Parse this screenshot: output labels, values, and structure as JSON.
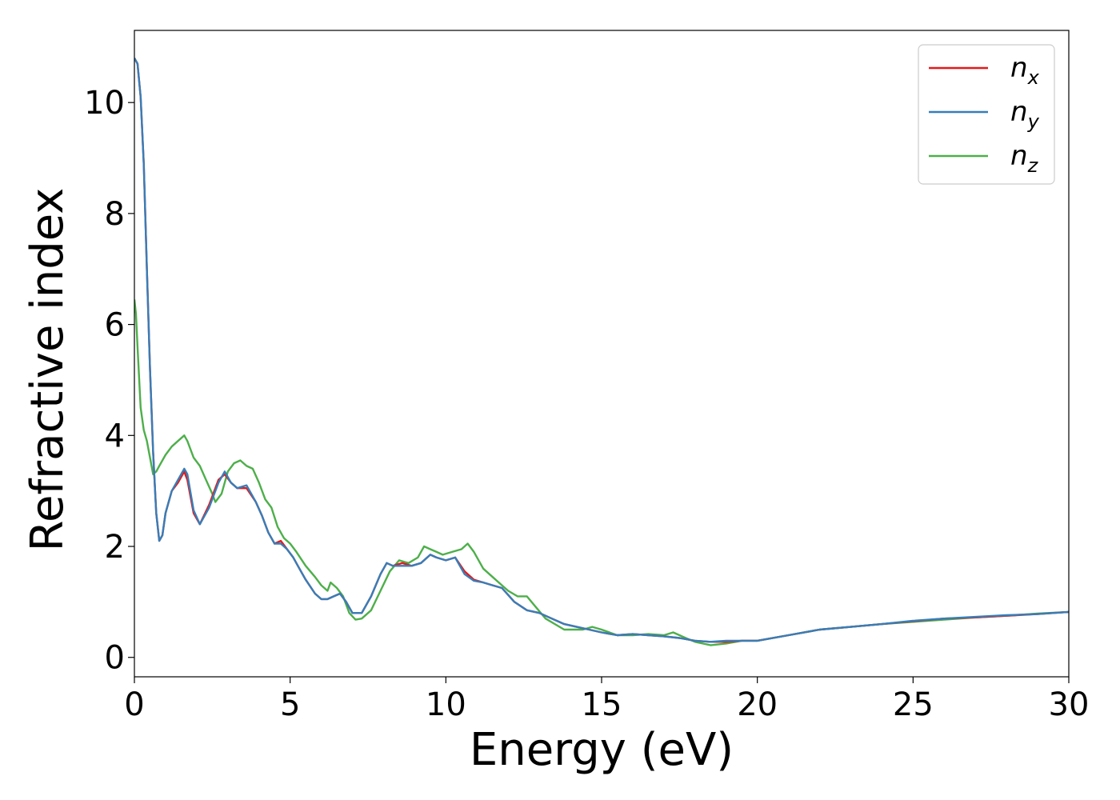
{
  "chart_data": {
    "type": "line",
    "xlabel": "Energy (eV)",
    "ylabel": "Refractive index",
    "xlim": [
      0,
      30
    ],
    "ylim": [
      -0.35,
      11.3
    ],
    "xticks": [
      "0",
      "5",
      "10",
      "15",
      "20",
      "25",
      "30"
    ],
    "yticks": [
      "0",
      "2",
      "4",
      "6",
      "8",
      "10"
    ],
    "grid": false,
    "legend_position": "top-right",
    "series": [
      {
        "name": "n_x",
        "label_main": "n",
        "label_sub": "x",
        "color": "#e41a1c",
        "x": [
          0.0,
          0.1,
          0.2,
          0.3,
          0.4,
          0.5,
          0.6,
          0.7,
          0.8,
          0.9,
          1.0,
          1.2,
          1.4,
          1.6,
          1.7,
          1.9,
          2.1,
          2.4,
          2.7,
          2.9,
          3.1,
          3.3,
          3.6,
          3.9,
          4.1,
          4.3,
          4.5,
          4.7,
          4.9,
          5.1,
          5.3,
          5.5,
          5.8,
          6.0,
          6.2,
          6.4,
          6.6,
          6.8,
          7.0,
          7.3,
          7.6,
          7.9,
          8.1,
          8.3,
          8.6,
          8.9,
          9.2,
          9.5,
          9.7,
          10.0,
          10.3,
          10.6,
          10.9,
          11.2,
          11.5,
          11.8,
          12.2,
          12.6,
          13.0,
          13.4,
          13.8,
          14.2,
          14.6,
          15.0,
          15.5,
          16.0,
          16.5,
          17.0,
          17.5,
          18.0,
          18.5,
          19.0,
          19.5,
          20.0,
          21.0,
          22.0,
          23.0,
          24.0,
          25.0,
          26.0,
          27.0,
          28.0,
          29.0,
          30.0
        ],
        "values": [
          10.8,
          10.7,
          10.1,
          8.9,
          7.0,
          5.2,
          3.7,
          2.6,
          2.1,
          2.2,
          2.6,
          3.0,
          3.15,
          3.35,
          3.2,
          2.6,
          2.4,
          2.75,
          3.2,
          3.3,
          3.15,
          3.05,
          3.05,
          2.8,
          2.55,
          2.25,
          2.05,
          2.1,
          1.95,
          1.8,
          1.6,
          1.4,
          1.15,
          1.05,
          1.05,
          1.1,
          1.15,
          1.0,
          0.8,
          0.8,
          1.1,
          1.5,
          1.7,
          1.65,
          1.7,
          1.65,
          1.7,
          1.85,
          1.8,
          1.75,
          1.8,
          1.55,
          1.4,
          1.35,
          1.3,
          1.25,
          1.0,
          0.85,
          0.8,
          0.7,
          0.6,
          0.55,
          0.5,
          0.45,
          0.4,
          0.42,
          0.4,
          0.38,
          0.35,
          0.3,
          0.28,
          0.28,
          0.3,
          0.3,
          0.4,
          0.5,
          0.55,
          0.6,
          0.65,
          0.7,
          0.72,
          0.75,
          0.78,
          0.82
        ]
      },
      {
        "name": "n_y",
        "label_main": "n",
        "label_sub": "y",
        "color": "#377eb8",
        "x": [
          0.0,
          0.1,
          0.2,
          0.3,
          0.4,
          0.5,
          0.6,
          0.7,
          0.8,
          0.9,
          1.0,
          1.2,
          1.4,
          1.6,
          1.7,
          1.9,
          2.1,
          2.4,
          2.7,
          2.9,
          3.1,
          3.3,
          3.6,
          3.9,
          4.1,
          4.3,
          4.5,
          4.7,
          4.9,
          5.1,
          5.3,
          5.5,
          5.8,
          6.0,
          6.2,
          6.4,
          6.6,
          6.8,
          7.0,
          7.3,
          7.6,
          7.9,
          8.1,
          8.3,
          8.6,
          8.9,
          9.2,
          9.5,
          9.7,
          10.0,
          10.3,
          10.6,
          10.9,
          11.2,
          11.5,
          11.8,
          12.2,
          12.6,
          13.0,
          13.4,
          13.8,
          14.2,
          14.6,
          15.0,
          15.5,
          16.0,
          16.5,
          17.0,
          17.5,
          18.0,
          18.5,
          19.0,
          19.5,
          20.0,
          21.0,
          22.0,
          23.0,
          24.0,
          25.0,
          26.0,
          27.0,
          28.0,
          29.0,
          30.0
        ],
        "values": [
          10.8,
          10.7,
          10.1,
          8.9,
          7.0,
          5.2,
          3.7,
          2.6,
          2.1,
          2.2,
          2.6,
          3.0,
          3.2,
          3.4,
          3.3,
          2.65,
          2.4,
          2.7,
          3.15,
          3.35,
          3.15,
          3.05,
          3.1,
          2.8,
          2.55,
          2.25,
          2.05,
          2.05,
          1.95,
          1.8,
          1.6,
          1.4,
          1.15,
          1.05,
          1.05,
          1.1,
          1.15,
          1.0,
          0.8,
          0.8,
          1.1,
          1.5,
          1.7,
          1.65,
          1.65,
          1.65,
          1.7,
          1.85,
          1.8,
          1.75,
          1.8,
          1.5,
          1.38,
          1.35,
          1.3,
          1.25,
          1.0,
          0.85,
          0.8,
          0.7,
          0.6,
          0.55,
          0.5,
          0.45,
          0.4,
          0.42,
          0.4,
          0.38,
          0.35,
          0.3,
          0.28,
          0.3,
          0.3,
          0.3,
          0.4,
          0.5,
          0.55,
          0.6,
          0.66,
          0.7,
          0.73,
          0.76,
          0.78,
          0.82
        ]
      },
      {
        "name": "n_z",
        "label_main": "n",
        "label_sub": "z",
        "color": "#4daf4a",
        "x": [
          0.0,
          0.05,
          0.1,
          0.2,
          0.3,
          0.4,
          0.5,
          0.6,
          0.7,
          0.8,
          1.0,
          1.2,
          1.4,
          1.6,
          1.7,
          1.9,
          2.1,
          2.3,
          2.5,
          2.6,
          2.8,
          3.0,
          3.2,
          3.4,
          3.6,
          3.8,
          4.0,
          4.2,
          4.4,
          4.6,
          4.8,
          5.0,
          5.2,
          5.5,
          5.8,
          6.0,
          6.2,
          6.3,
          6.5,
          6.7,
          6.9,
          7.1,
          7.3,
          7.6,
          7.9,
          8.2,
          8.5,
          8.8,
          9.1,
          9.3,
          9.5,
          9.7,
          9.9,
          10.2,
          10.5,
          10.7,
          10.9,
          11.2,
          11.5,
          11.8,
          12.0,
          12.3,
          12.6,
          12.9,
          13.2,
          13.5,
          13.8,
          14.1,
          14.4,
          14.7,
          15.0,
          15.5,
          16.0,
          16.5,
          17.0,
          17.3,
          17.7,
          18.0,
          18.5,
          19.0,
          19.5,
          20.0,
          21.0,
          22.0,
          23.0,
          24.0,
          25.0,
          26.0,
          27.0,
          28.0,
          29.0,
          30.0
        ],
        "values": [
          6.45,
          6.2,
          5.6,
          4.5,
          4.1,
          3.9,
          3.6,
          3.3,
          3.35,
          3.45,
          3.65,
          3.8,
          3.9,
          4.0,
          3.9,
          3.6,
          3.45,
          3.2,
          2.95,
          2.8,
          2.95,
          3.35,
          3.5,
          3.55,
          3.45,
          3.4,
          3.15,
          2.85,
          2.7,
          2.35,
          2.15,
          2.05,
          1.9,
          1.65,
          1.45,
          1.3,
          1.2,
          1.35,
          1.25,
          1.1,
          0.8,
          0.68,
          0.7,
          0.85,
          1.2,
          1.55,
          1.75,
          1.7,
          1.8,
          2.0,
          1.95,
          1.9,
          1.85,
          1.9,
          1.95,
          2.05,
          1.9,
          1.6,
          1.45,
          1.3,
          1.2,
          1.1,
          1.1,
          0.9,
          0.7,
          0.6,
          0.5,
          0.5,
          0.5,
          0.55,
          0.5,
          0.4,
          0.4,
          0.42,
          0.4,
          0.45,
          0.35,
          0.28,
          0.22,
          0.25,
          0.3,
          0.3,
          0.4,
          0.5,
          0.55,
          0.6,
          0.64,
          0.68,
          0.72,
          0.75,
          0.79,
          0.82
        ]
      }
    ]
  }
}
